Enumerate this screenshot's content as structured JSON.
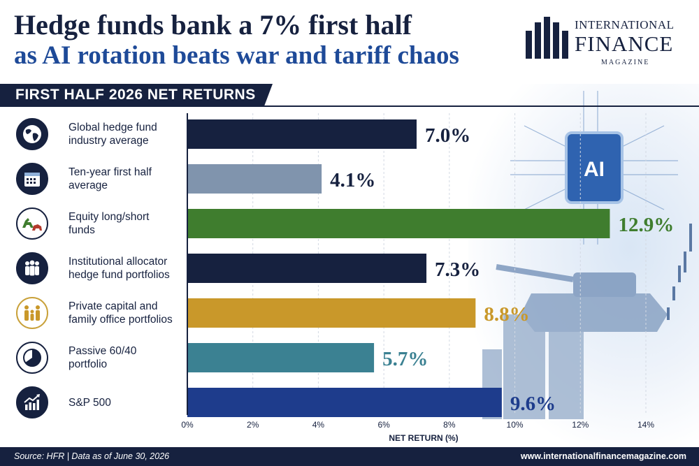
{
  "headline": {
    "line1": "Hedge funds bank a 7% first half",
    "line2": "as AI rotation beats war and tariff chaos"
  },
  "brand": {
    "line1": "INTERNATIONAL",
    "line2": "FINANCE",
    "line3": "MAGAZINE"
  },
  "section_title": "FIRST HALF 2026 NET RETURNS",
  "art_badge": "AI",
  "colors": {
    "navy": "#16213f",
    "blue": "#1e4a98",
    "gray": "#8094ad",
    "green": "#3f7d2e",
    "gold": "#c9982a",
    "teal": "#3b8192"
  },
  "rows": [
    {
      "label": "Global hedge fund industry average",
      "line1": "Global hedge fund",
      "line2": "industry average",
      "icon": "globe-icon"
    },
    {
      "label": "Ten-year first half average",
      "line1": "Ten-year first half",
      "line2": "average",
      "icon": "calendar-icon"
    },
    {
      "label": "Equity long/short funds",
      "line1": "Equity long/short",
      "line2": "funds",
      "icon": "bull-bear-icon"
    },
    {
      "label": "Institutional allocator hedge fund portfolios",
      "line1": "Institutional allocator",
      "line2": "hedge fund portfolios",
      "icon": "people-icon"
    },
    {
      "label": "Private capital and family office portfolios",
      "line1": "Private capital and",
      "line2": "family office portfolios",
      "icon": "family-icon"
    },
    {
      "label": "Passive 60/40 portfolio",
      "line1": "Passive 60/40",
      "line2": "portfolio",
      "icon": "pie-chart-icon"
    },
    {
      "label": "S&P 500",
      "line1": "S&P 500",
      "line2": "",
      "icon": "trend-chart-icon"
    }
  ],
  "chart_data": {
    "type": "bar",
    "orientation": "horizontal",
    "title": "FIRST HALF 2026 NET RETURNS",
    "xlabel": "NET RETURN (%)",
    "categories": [
      "Global hedge fund industry average",
      "Ten-year first half average",
      "Equity long/short funds",
      "Institutional allocator hedge fund portfolios",
      "Private capital and family office portfolios",
      "Passive 60/40 portfolio",
      "S&P 500"
    ],
    "values": [
      7.0,
      4.1,
      12.9,
      7.3,
      8.8,
      5.7,
      9.6
    ],
    "value_labels": [
      "7.0%",
      "4.1%",
      "12.9%",
      "7.3%",
      "8.8%",
      "5.7%",
      "9.6%"
    ],
    "bar_colors": [
      "#16213f",
      "#8094ad",
      "#3f7d2e",
      "#16213f",
      "#c9982a",
      "#3b8192",
      "#1e3c8c"
    ],
    "xlim": [
      0,
      14
    ],
    "xticks": [
      0,
      2,
      4,
      6,
      8,
      10,
      12,
      14
    ],
    "xtick_labels": [
      "0%",
      "2%",
      "4%",
      "6%",
      "8%",
      "10%",
      "12%",
      "14%"
    ],
    "grid": true,
    "legend": "none"
  },
  "footer": {
    "source": "Source: HFR | Data as of June 30, 2026",
    "url": "www.internationalfinancemagazine.com"
  }
}
